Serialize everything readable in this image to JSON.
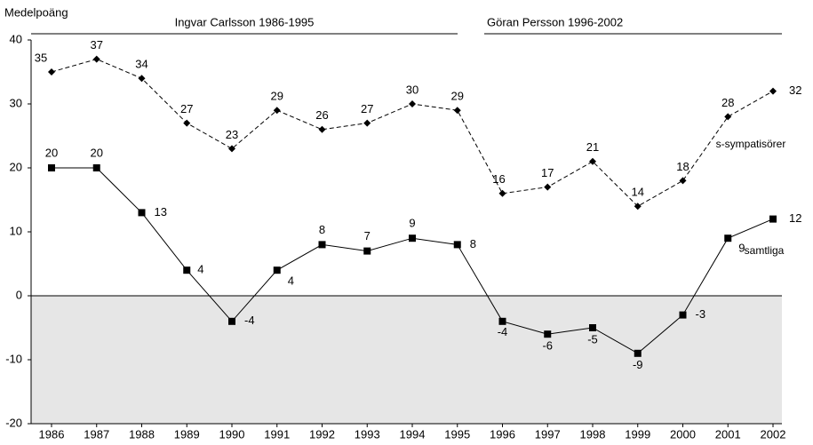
{
  "chart_data": {
    "type": "line",
    "ylabel": "Medelpoäng",
    "annotations": [
      "Ingvar Carlsson 1986-1995",
      "Göran Persson 1996-2002"
    ],
    "categories": [
      "1986",
      "1987",
      "1988",
      "1989",
      "1990",
      "1991",
      "1992",
      "1993",
      "1994",
      "1995",
      "1996",
      "1997",
      "1998",
      "1999",
      "2000",
      "2001",
      "2002"
    ],
    "series": [
      {
        "name": "s-sympatisörer",
        "color": "#000000",
        "dash": true,
        "marker": "diamond",
        "values": [
          35,
          37,
          34,
          27,
          23,
          29,
          26,
          27,
          30,
          29,
          16,
          17,
          21,
          14,
          18,
          28,
          32
        ]
      },
      {
        "name": "samtliga",
        "color": "#000000",
        "dash": false,
        "marker": "square",
        "values": [
          20,
          20,
          13,
          4,
          -4,
          4,
          8,
          7,
          9,
          8,
          -4,
          -6,
          -5,
          -9,
          -3,
          9,
          12
        ]
      }
    ],
    "ylim": [
      -20,
      40
    ],
    "yticks": [
      -20,
      -10,
      0,
      10,
      20,
      30,
      40
    ]
  }
}
